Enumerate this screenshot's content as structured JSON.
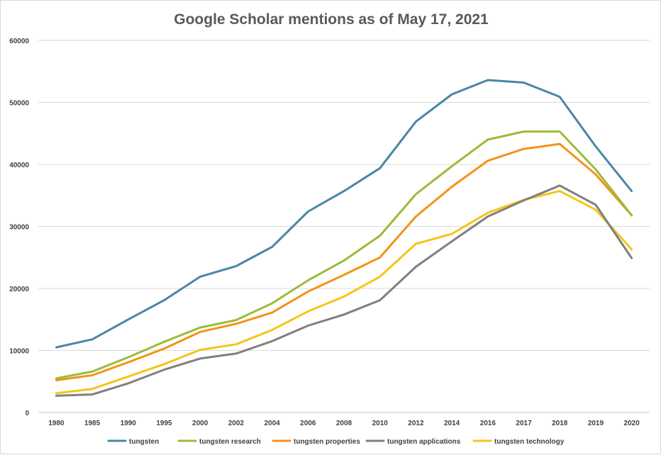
{
  "chart_data": {
    "type": "line",
    "title": "Google Scholar mentions as of May 17, 2021",
    "xlabel": "",
    "ylabel": "",
    "ylim": [
      0,
      60000
    ],
    "yticks": [
      0,
      10000,
      20000,
      30000,
      40000,
      50000,
      60000
    ],
    "grid": true,
    "legend_position": "bottom",
    "categories": [
      "1980",
      "1985",
      "1990",
      "1995",
      "2000",
      "2002",
      "2004",
      "2006",
      "2008",
      "2010",
      "2012",
      "2014",
      "2016",
      "2017",
      "2018",
      "2019",
      "2020"
    ],
    "series": [
      {
        "name": "tungsten",
        "color": "#4a86a8",
        "values": [
          10500,
          11800,
          15000,
          18100,
          21900,
          23600,
          26700,
          32400,
          35700,
          39400,
          46900,
          51300,
          53600,
          53200,
          50900,
          42900,
          35700
        ]
      },
      {
        "name": "tungsten research",
        "color": "#9bbb3b",
        "values": [
          5500,
          6600,
          8900,
          11400,
          13700,
          14900,
          17600,
          21300,
          24500,
          28500,
          35200,
          39700,
          44000,
          45300,
          45300,
          39200,
          31800
        ]
      },
      {
        "name": "tungsten properties",
        "color": "#f39316",
        "values": [
          5200,
          6000,
          8100,
          10300,
          13000,
          14300,
          16100,
          19500,
          22200,
          25000,
          31600,
          36400,
          40600,
          42500,
          43300,
          38400,
          31800
        ]
      },
      {
        "name": "tungsten applications",
        "color": "#7f7f7f",
        "values": [
          2700,
          2900,
          4700,
          6900,
          8700,
          9500,
          11500,
          14000,
          15800,
          18100,
          23500,
          27600,
          31600,
          34200,
          36600,
          33500,
          24900
        ]
      },
      {
        "name": "tungsten technology",
        "color": "#f5c518",
        "values": [
          3100,
          3800,
          5800,
          7800,
          10100,
          11000,
          13300,
          16300,
          18700,
          21900,
          27200,
          28800,
          32200,
          34300,
          35700,
          32700,
          26300
        ]
      }
    ]
  }
}
